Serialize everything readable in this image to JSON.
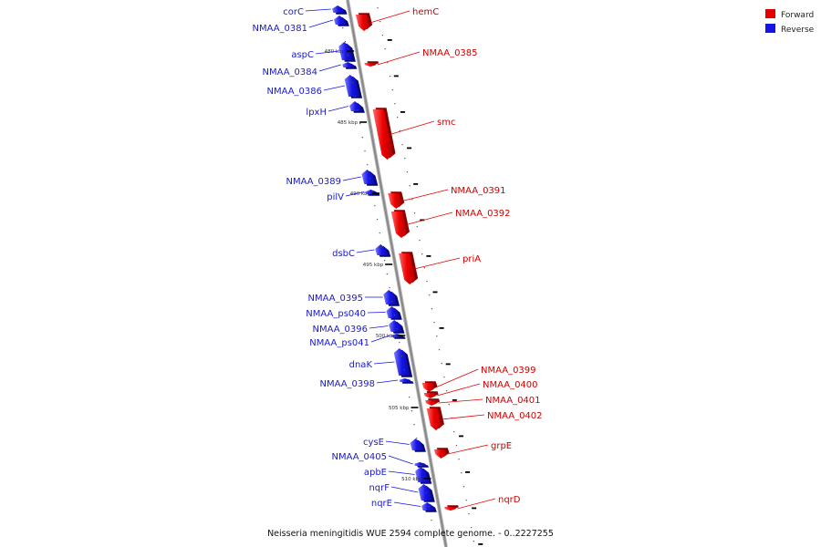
{
  "legend": {
    "forward": "Forward",
    "reverse": "Reverse"
  },
  "colors": {
    "forward": "#e60000",
    "reverse": "#1414e6",
    "axis": "#8a8a8a"
  },
  "caption": "Neisseria meningitidis WUE 2594 complete genome. - 0..2227255",
  "ticks": [
    "480 kbp",
    "485 kbp",
    "490 kbp",
    "495 kbp",
    "500 kbp",
    "505 kbp",
    "510 kbp"
  ],
  "genes": [
    {
      "name": "corC",
      "strand": "reverse",
      "start": 6,
      "end": 14
    },
    {
      "name": "NMAA_0381",
      "strand": "reverse",
      "start": 17,
      "end": 27
    },
    {
      "name": "hemC",
      "strand": "forward",
      "start": 16,
      "end": 34
    },
    {
      "name": "aspC",
      "strand": "reverse",
      "start": 46,
      "end": 66
    },
    {
      "name": "NMAA_0384",
      "strand": "reverse",
      "start": 68,
      "end": 74
    },
    {
      "name": "NMAA_0385",
      "strand": "forward",
      "start": 69,
      "end": 73
    },
    {
      "name": "NMAA_0386",
      "strand": "reverse",
      "start": 82,
      "end": 106
    },
    {
      "name": "lpxH",
      "strand": "reverse",
      "start": 111,
      "end": 122
    },
    {
      "name": "smc",
      "strand": "forward",
      "start": 120,
      "end": 175
    },
    {
      "name": "NMAA_0389",
      "strand": "reverse",
      "start": 186,
      "end": 202
    },
    {
      "name": "pilV",
      "strand": "reverse",
      "start": 208,
      "end": 213
    },
    {
      "name": "NMAA_0391",
      "strand": "forward",
      "start": 212,
      "end": 229
    },
    {
      "name": "NMAA_0392",
      "strand": "forward",
      "start": 232,
      "end": 261
    },
    {
      "name": "dsbC",
      "strand": "reverse",
      "start": 268,
      "end": 280
    },
    {
      "name": "priA",
      "strand": "forward",
      "start": 278,
      "end": 312
    },
    {
      "name": "NMAA_0395",
      "strand": "reverse",
      "start": 318,
      "end": 334
    },
    {
      "name": "NMAA_ps040",
      "strand": "reverse",
      "start": 336,
      "end": 349
    },
    {
      "name": "NMAA_0396",
      "strand": "reverse",
      "start": 351,
      "end": 364
    },
    {
      "name": "NMAA_ps041",
      "strand": "reverse",
      "start": 366,
      "end": 370
    },
    {
      "name": "dnaK",
      "strand": "reverse",
      "start": 382,
      "end": 412
    },
    {
      "name": "NMAA_0398",
      "strand": "reverse",
      "start": 415,
      "end": 419
    },
    {
      "name": "NMAA_0399",
      "strand": "forward",
      "start": 420,
      "end": 430
    },
    {
      "name": "NMAA_0400",
      "strand": "forward",
      "start": 431,
      "end": 437
    },
    {
      "name": "NMAA_0401",
      "strand": "forward",
      "start": 439,
      "end": 445
    },
    {
      "name": "NMAA_0402",
      "strand": "forward",
      "start": 448,
      "end": 472
    },
    {
      "name": "cysE",
      "strand": "reverse",
      "start": 481,
      "end": 494
    },
    {
      "name": "grpE",
      "strand": "forward",
      "start": 493,
      "end": 503
    },
    {
      "name": "NMAA_0405",
      "strand": "reverse",
      "start": 507,
      "end": 511
    },
    {
      "name": "apbE",
      "strand": "reverse",
      "start": 512,
      "end": 529
    },
    {
      "name": "nqrF",
      "strand": "reverse",
      "start": 531,
      "end": 549
    },
    {
      "name": "nqrE",
      "strand": "reverse",
      "start": 551,
      "end": 560
    },
    {
      "name": "nqrD",
      "strand": "forward",
      "start": 556,
      "end": 560
    }
  ]
}
